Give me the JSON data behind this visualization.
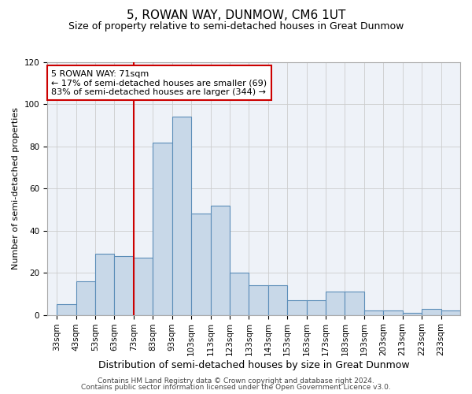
{
  "title": "5, ROWAN WAY, DUNMOW, CM6 1UT",
  "subtitle": "Size of property relative to semi-detached houses in Great Dunmow",
  "xlabel": "Distribution of semi-detached houses by size in Great Dunmow",
  "ylabel": "Number of semi-detached properties",
  "bins": [
    33,
    43,
    53,
    63,
    73,
    83,
    93,
    103,
    113,
    123,
    133,
    143,
    153,
    163,
    173,
    183,
    193,
    203,
    213,
    223,
    233
  ],
  "bin_labels": [
    "33sqm",
    "43sqm",
    "53sqm",
    "63sqm",
    "73sqm",
    "83sqm",
    "93sqm",
    "103sqm",
    "113sqm",
    "123sqm",
    "133sqm",
    "143sqm",
    "153sqm",
    "163sqm",
    "173sqm",
    "183sqm",
    "193sqm",
    "203sqm",
    "213sqm",
    "223sqm",
    "233sqm"
  ],
  "values": [
    5,
    16,
    29,
    28,
    27,
    82,
    94,
    48,
    52,
    20,
    14,
    14,
    7,
    7,
    11,
    11,
    2,
    2,
    1,
    3,
    2
  ],
  "bar_color": "#c8d8e8",
  "bar_edge_color": "#5b8db8",
  "property_line_x": 73,
  "property_line_color": "#cc0000",
  "annotation_line1": "5 ROWAN WAY: 71sqm",
  "annotation_line2": "← 17% of semi-detached houses are smaller (69)",
  "annotation_line3": "83% of semi-detached houses are larger (344) →",
  "annotation_box_color": "#ffffff",
  "annotation_box_edge": "#cc0000",
  "ylim": [
    0,
    120
  ],
  "yticks": [
    0,
    20,
    40,
    60,
    80,
    100,
    120
  ],
  "grid_color": "#cccccc",
  "background_color": "#eef2f8",
  "footer_line1": "Contains HM Land Registry data © Crown copyright and database right 2024.",
  "footer_line2": "Contains public sector information licensed under the Open Government Licence v3.0.",
  "title_fontsize": 11,
  "subtitle_fontsize": 9,
  "xlabel_fontsize": 9,
  "ylabel_fontsize": 8,
  "tick_fontsize": 7.5,
  "annotation_fontsize": 8,
  "footer_fontsize": 6.5
}
